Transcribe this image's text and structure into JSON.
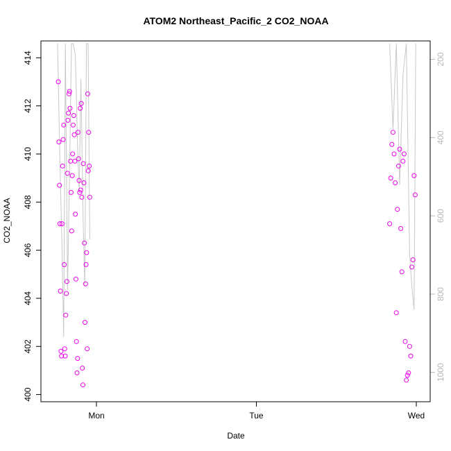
{
  "chart_data": {
    "type": "scatter",
    "title": "ATOM2 Northeast_Pacific_2 CO2_NOAA",
    "xlabel": "Date",
    "ylabel": "CO2_NOAA",
    "x_ticks": [
      "Mon",
      "Tue",
      "Wed"
    ],
    "y_ticks": [
      "400",
      "402",
      "404",
      "406",
      "408",
      "410",
      "412",
      "414"
    ],
    "y2_ticks": [
      "200",
      "400",
      "600",
      "800",
      "1000"
    ],
    "ylim": [
      399.7,
      414.7
    ],
    "y2lim": [
      1075,
      153
    ],
    "y2_reversed": true,
    "grid": false,
    "colors": {
      "points": "#ee00ee",
      "secondary_line": "#c8c8c8",
      "secondary_axis": "#b8b8b8",
      "frame": "#000000"
    },
    "series": [
      {
        "marker": "open-circle",
        "axis": "left",
        "x": [
          "Sun 18:17",
          "Sun 18:22",
          "Sun 18:27",
          "Sun 18:31",
          "Sun 18:36",
          "Sun 18:41",
          "Sun 18:46",
          "Sun 18:50",
          "Sun 18:55",
          "Sun 19:00",
          "Sun 19:05",
          "Sun 19:10",
          "Sun 19:14",
          "Sun 19:19",
          "Sun 19:24",
          "Sun 19:29",
          "Sun 19:34",
          "Sun 19:38",
          "Sun 19:43",
          "Sun 19:48",
          "Sun 19:53",
          "Sun 19:58",
          "Sun 20:02",
          "Sun 20:07",
          "Sun 20:12",
          "Sun 20:17",
          "Sun 20:22",
          "Sun 20:26",
          "Sun 20:31",
          "Sun 20:36",
          "Sun 20:41",
          "Sun 20:46",
          "Sun 20:50",
          "Sun 20:55",
          "Sun 21:00",
          "Sun 21:05",
          "Sun 21:10",
          "Sun 21:14",
          "Sun 21:19",
          "Sun 21:24",
          "Sun 21:29",
          "Sun 21:34",
          "Sun 21:38",
          "Sun 21:43",
          "Sun 21:48",
          "Sun 21:53",
          "Sun 21:58",
          "Sun 22:02",
          "Sun 22:07",
          "Sun 22:12",
          "Sun 22:17",
          "Sun 22:22",
          "Sun 22:26",
          "Sun 22:31",
          "Sun 22:36",
          "Sun 22:41",
          "Sun 22:46",
          "Sun 22:50",
          "Sun 22:55",
          "Sun 23:00",
          "Tue 20:00",
          "Tue 20:10",
          "Tue 20:20",
          "Tue 20:30",
          "Tue 20:40",
          "Tue 20:50",
          "Tue 21:00",
          "Tue 21:10",
          "Tue 21:20",
          "Tue 21:30",
          "Tue 21:40",
          "Tue 21:50",
          "Tue 22:00",
          "Tue 22:10",
          "Tue 22:20",
          "Tue 22:30",
          "Tue 22:40",
          "Tue 22:50",
          "Tue 23:00",
          "Tue 23:10",
          "Tue 23:20",
          "Tue 23:30",
          "Tue 23:40",
          "Tue 23:50"
        ],
        "y": [
          413.0,
          410.5,
          408.7,
          407.1,
          404.3,
          401.8,
          401.6,
          407.1,
          409.5,
          410.6,
          411.2,
          405.4,
          401.9,
          401.6,
          403.3,
          404.2,
          404.7,
          409.2,
          411.4,
          411.7,
          412.5,
          412.6,
          411.9,
          409.7,
          408.4,
          406.8,
          409.1,
          410.0,
          411.2,
          411.6,
          410.8,
          409.7,
          407.5,
          404.8,
          402.2,
          400.9,
          401.5,
          410.9,
          409.8,
          408.9,
          408.4,
          411.9,
          408.5,
          412.1,
          408.2,
          401.1,
          400.4,
          409.6,
          408.8,
          406.3,
          403.0,
          404.6,
          405.4,
          405.9,
          401.9,
          412.5,
          409.3,
          410.9,
          409.5,
          408.2,
          407.1,
          409.0,
          410.4,
          410.9,
          410.0,
          408.8,
          403.4,
          407.7,
          409.5,
          410.2,
          406.9,
          405.1,
          409.7,
          410.0,
          402.2,
          400.6,
          400.8,
          400.9,
          402.0,
          401.6,
          405.3,
          405.6,
          409.1,
          408.3
        ]
      },
      {
        "marker": "line",
        "axis": "right",
        "x": [
          "Sun 18:10",
          "Sun 18:30",
          "Sun 18:50",
          "Sun 19:05",
          "Sun 19:20",
          "Sun 19:40",
          "Sun 20:00",
          "Sun 20:15",
          "Sun 20:30",
          "Sun 20:50",
          "Sun 21:10",
          "Sun 21:25",
          "Sun 21:40",
          "Sun 22:00",
          "Sun 22:15",
          "Sun 22:30",
          "Sun 22:45",
          "Sun 23:00",
          "Tue 20:00",
          "Tue 20:30",
          "Tue 21:00",
          "Tue 21:30",
          "Tue 22:00",
          "Tue 22:30",
          "Tue 23:00",
          "Tue 23:20",
          "Tue 23:40",
          "Tue 23:55"
        ],
        "y": [
          160,
          450,
          680,
          910,
          160,
          790,
          450,
          160,
          160,
          190,
          420,
          540,
          250,
          610,
          780,
          160,
          160,
          660,
          160,
          380,
          160,
          520,
          240,
          160,
          700,
          780,
          840,
          160
        ]
      }
    ]
  }
}
